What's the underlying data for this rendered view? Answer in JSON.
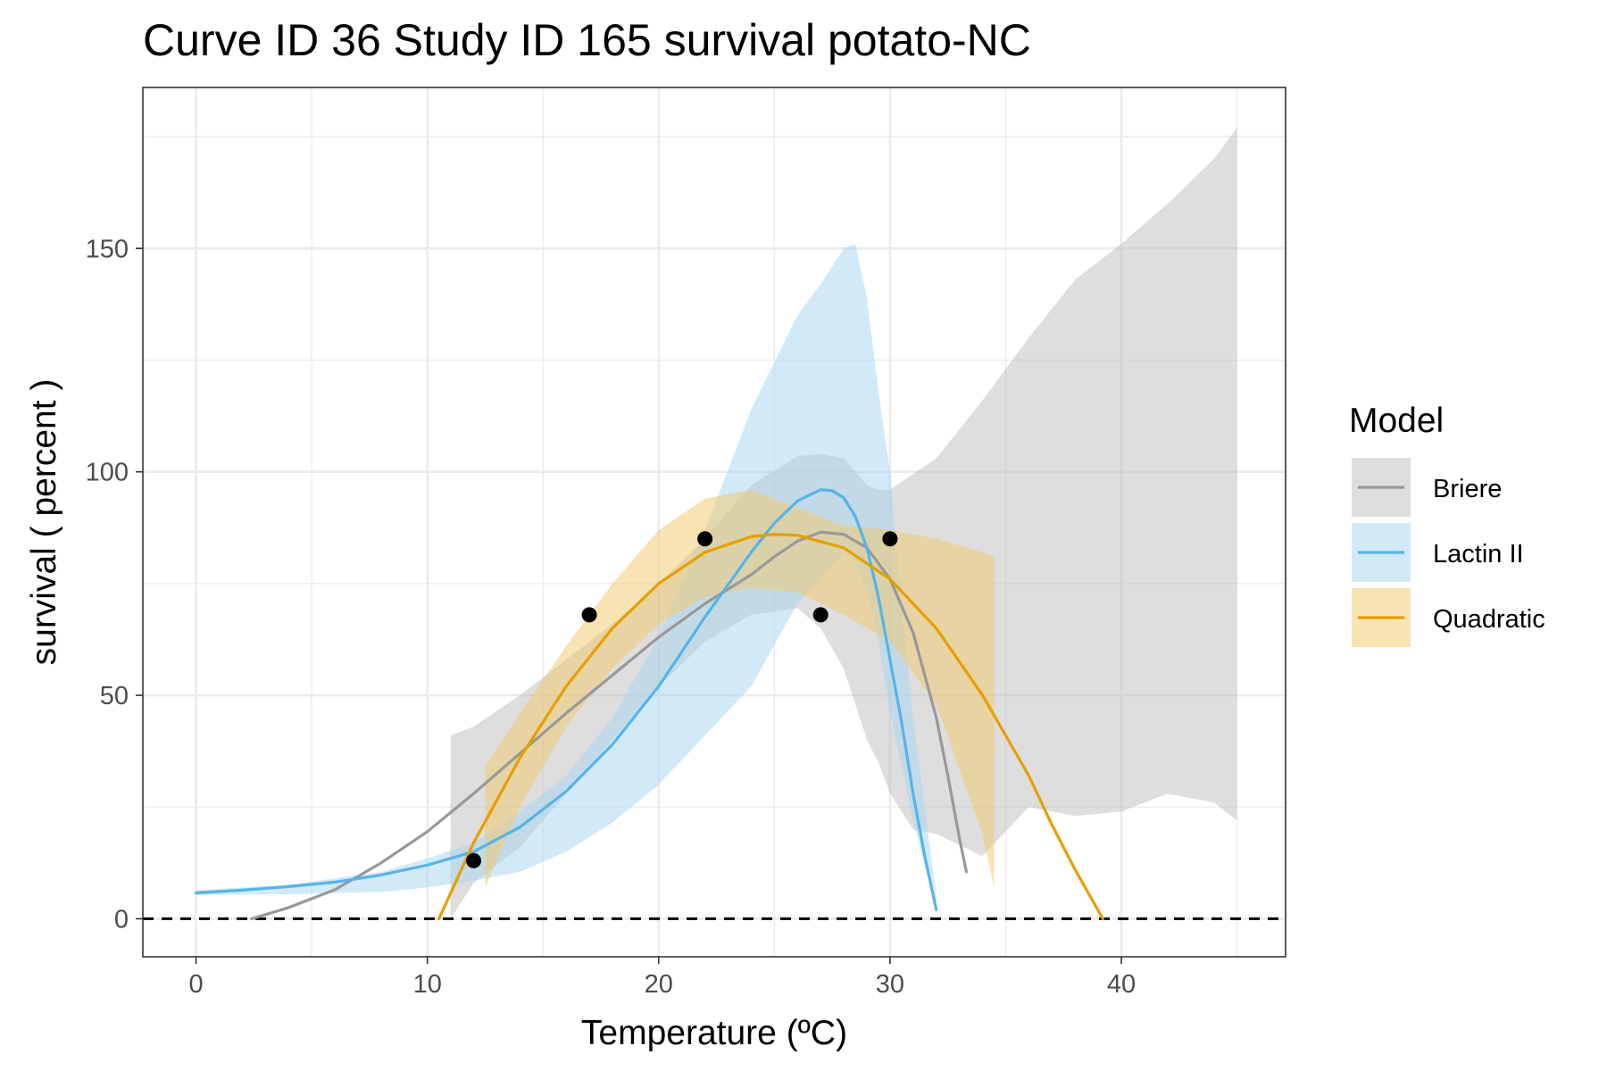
{
  "chart_data": {
    "type": "line",
    "title": "Curve ID 36 Study ID 165 survival potato-NC",
    "xlabel": "Temperature (ºC)",
    "ylabel": "survival ( percent )",
    "xlim": [
      -2.3,
      47.1
    ],
    "ylim": [
      -8.5,
      186
    ],
    "x_ticks": [
      0,
      10,
      20,
      30,
      40
    ],
    "y_ticks": [
      0,
      50,
      100,
      150
    ],
    "grid": true,
    "reference_line": {
      "y": 0,
      "style": "dashed",
      "color": "#000000"
    },
    "legend": {
      "title": "Model",
      "position": "right"
    },
    "series": [
      {
        "name": "Briere",
        "color": "#999999",
        "fill": "#bdbdbd",
        "x": [
          2.4,
          4,
          6,
          8,
          10,
          12,
          14,
          16,
          18,
          20,
          22,
          24,
          25,
          26,
          27,
          28,
          29,
          30,
          31,
          32,
          32.5,
          33,
          33.3
        ],
        "y": [
          0,
          2.5,
          6.5,
          12.5,
          19.5,
          28,
          37,
          46,
          54.5,
          63,
          70.5,
          77,
          81,
          84.5,
          86.5,
          86,
          83,
          76,
          64,
          45,
          32,
          18,
          10.5
        ],
        "band_x": [
          11,
          12,
          14,
          16,
          18,
          20,
          22,
          24,
          26,
          27,
          28,
          29,
          29.5,
          30,
          31,
          32,
          34,
          36,
          38,
          40,
          42,
          44,
          45
        ],
        "band_low": [
          0,
          8,
          16,
          28,
          40,
          52,
          62,
          68,
          69.5,
          65,
          56,
          40,
          35,
          28,
          20,
          19,
          14,
          25,
          23,
          24,
          28,
          26,
          22
        ],
        "band_high": [
          41,
          43,
          50,
          58,
          66,
          75,
          85,
          97,
          103.5,
          104,
          103,
          97,
          96,
          96,
          99.5,
          103,
          116,
          130,
          143,
          151,
          160,
          170,
          177
        ]
      },
      {
        "name": "Lactin II",
        "color": "#56b4e9",
        "fill": "#a6d5f2",
        "x": [
          0,
          2,
          4,
          6,
          8,
          10,
          12,
          14,
          16,
          18,
          20,
          22,
          24,
          25,
          26,
          27,
          27.5,
          28,
          28.5,
          29,
          29.5,
          30,
          30.5,
          31,
          31.5,
          32
        ],
        "y": [
          5.8,
          6.4,
          7.2,
          8.2,
          9.8,
          12,
          15,
          20.5,
          28.5,
          39,
          52,
          67.5,
          82,
          88.5,
          93.5,
          96,
          95.8,
          94.2,
          90,
          83,
          72,
          58,
          44,
          28,
          14,
          2
        ],
        "band_x": [
          0,
          4,
          8,
          10,
          12,
          14,
          16,
          18,
          20,
          22,
          24,
          26,
          27,
          28,
          28.5,
          29,
          29.5,
          30,
          30.5,
          31,
          31.5,
          32
        ],
        "band_low": [
          5.3,
          5.5,
          6,
          7,
          8.5,
          10.5,
          15,
          21.5,
          30,
          41,
          52,
          70.5,
          76,
          82,
          80,
          73,
          62,
          46,
          34,
          22,
          12,
          2
        ],
        "band_high": [
          6.4,
          7.6,
          10.5,
          13.5,
          17,
          24,
          32,
          45,
          63,
          87,
          114,
          135,
          142,
          150,
          151,
          139,
          118,
          100,
          70,
          45,
          25,
          5
        ]
      },
      {
        "name": "Quadratic",
        "color": "#e69f00",
        "fill": "#f2c767",
        "x": [
          10.5,
          12,
          14,
          16,
          18,
          20,
          22,
          24,
          25,
          26,
          28,
          30,
          32,
          34,
          36,
          37,
          38,
          39.2
        ],
        "y": [
          0,
          17,
          36,
          52,
          65,
          75,
          82,
          85.5,
          86,
          85.8,
          83,
          76,
          65,
          50,
          32,
          21,
          11,
          0
        ],
        "band_x": [
          12.5,
          14,
          16,
          18,
          20,
          22,
          24,
          26,
          28,
          30,
          32,
          34,
          34.5
        ],
        "band_low": [
          7,
          25,
          43,
          56,
          66,
          72,
          74,
          73,
          68,
          62,
          48,
          19,
          7
        ],
        "band_high": [
          34,
          46,
          61,
          75,
          87,
          94,
          96,
          92,
          88,
          87,
          85,
          82,
          81
        ]
      }
    ],
    "points": {
      "color": "#000000",
      "x": [
        12,
        17,
        22,
        27,
        30
      ],
      "y": [
        13,
        68,
        85,
        68,
        85
      ]
    }
  }
}
